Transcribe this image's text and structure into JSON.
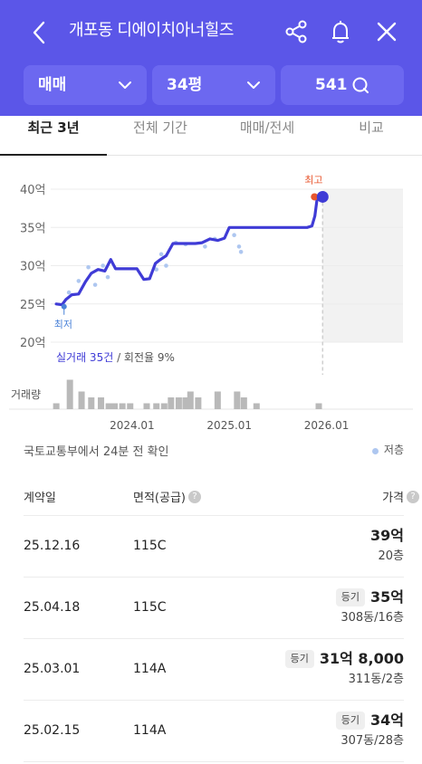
{
  "header": {
    "title": "개포동 디에이치아너힐즈",
    "filters": {
      "trade": "매매",
      "size": "34평",
      "count": "541"
    }
  },
  "tabs": [
    {
      "label": "최근 3년",
      "active": true
    },
    {
      "label": "전체 기간",
      "active": false
    },
    {
      "label": "매매/전세",
      "active": false
    },
    {
      "label": "비교",
      "active": false
    }
  ],
  "chart_data": {
    "type": "line",
    "y_tick_labels": [
      "40억",
      "35억",
      "30억",
      "25억",
      "20억"
    ],
    "y_ticks": [
      40,
      35,
      30,
      25,
      20
    ],
    "ylim": [
      20,
      40
    ],
    "x_tick_labels": [
      "2024.01",
      "2025.01",
      "2026.01"
    ],
    "x_ticks": [
      2024.0,
      2025.0,
      2026.0
    ],
    "xlim": [
      2023.2,
      2026.6
    ],
    "series": [
      {
        "x": [
          2023.22,
          2023.28,
          2023.32,
          2023.38,
          2023.45,
          2023.52,
          2023.58,
          2023.65,
          2023.72,
          2023.78,
          2023.83,
          2023.9,
          2023.98,
          2024.05,
          2024.12,
          2024.18,
          2024.24,
          2024.28,
          2024.35,
          2024.42,
          2024.5,
          2024.58,
          2024.65,
          2024.72,
          2024.8,
          2024.88,
          2024.95,
          2025.0,
          2025.08,
          2025.15,
          2025.22,
          2025.3,
          2025.4,
          2025.5,
          2025.6,
          2025.7,
          2025.8,
          2025.85,
          2025.88,
          2025.9,
          2025.93,
          2025.96
        ],
        "values": [
          25.0,
          24.9,
          25.6,
          26.2,
          26.3,
          27.9,
          29.0,
          29.5,
          29.3,
          30.8,
          29.6,
          29.6,
          29.6,
          29.6,
          28.2,
          28.3,
          30.3,
          30.7,
          31.3,
          32.9,
          32.9,
          32.9,
          32.9,
          33.0,
          33.5,
          33.3,
          33.6,
          35.0,
          35.0,
          35.0,
          35.0,
          35.0,
          35.0,
          35.0,
          35.0,
          35.0,
          35.0,
          35.2,
          36.5,
          38.5,
          39.0,
          39.0
        ]
      }
    ],
    "scatter": {
      "x": [
        2023.35,
        2023.45,
        2023.55,
        2023.62,
        2023.7,
        2023.75,
        2024.25,
        2024.3,
        2024.35,
        2024.45,
        2024.55,
        2024.75,
        2024.85,
        2025.05,
        2025.1,
        2025.12
      ],
      "values": [
        26.5,
        28.0,
        29.8,
        27.5,
        30.0,
        28.5,
        29.5,
        31.5,
        30.0,
        33.0,
        32.8,
        32.5,
        33.5,
        34.0,
        32.5,
        31.8
      ]
    },
    "high_label": "최고",
    "low_label": "최저",
    "low_value": 25.0,
    "summary_label": "실거래 35건",
    "turnover_label": "회전율 9%",
    "volume": {
      "label": "거래량",
      "x": [
        2023.22,
        2023.36,
        2023.48,
        2023.58,
        2023.68,
        2023.76,
        2023.82,
        2023.9,
        2023.98,
        2024.15,
        2024.25,
        2024.33,
        2024.4,
        2024.48,
        2024.55,
        2024.6,
        2024.68,
        2024.88,
        2025.08,
        2025.15,
        2025.28,
        2025.92
      ],
      "values": [
        1,
        5,
        3,
        2,
        2,
        1,
        1,
        1,
        1,
        1,
        1,
        1,
        2,
        2,
        2,
        3,
        2,
        3,
        3,
        2,
        1,
        1
      ]
    }
  },
  "source_note": "국토교통부에서 24분 전 확인",
  "legend_label": "저층",
  "table": {
    "headers": {
      "date": "계약일",
      "area": "면적(공급)",
      "price": "가격"
    },
    "help_glyph": "?",
    "rows": [
      {
        "date": "25.12.16",
        "area": "115C",
        "tag": "",
        "price": "39억",
        "floor": "20층"
      },
      {
        "date": "25.04.18",
        "area": "115C",
        "tag": "등기",
        "price": "35억",
        "floor": "308동/16층"
      },
      {
        "date": "25.03.01",
        "area": "114A",
        "tag": "등기",
        "price": "31억 8,000",
        "floor": "311동/2층"
      },
      {
        "date": "25.02.15",
        "area": "114A",
        "tag": "등기",
        "price": "34억",
        "floor": "307동/28층"
      }
    ]
  },
  "colors": {
    "header_bg": "#5b56e8",
    "filter_bg": "#6c68f0",
    "line": "#3f3bd6",
    "high_point": "#e8562e",
    "low_point": "#4a82d8",
    "scatter_point": "#aec7f0",
    "volume_bar": "#b9b9b9",
    "forecast_area": "#f2f2f2"
  }
}
